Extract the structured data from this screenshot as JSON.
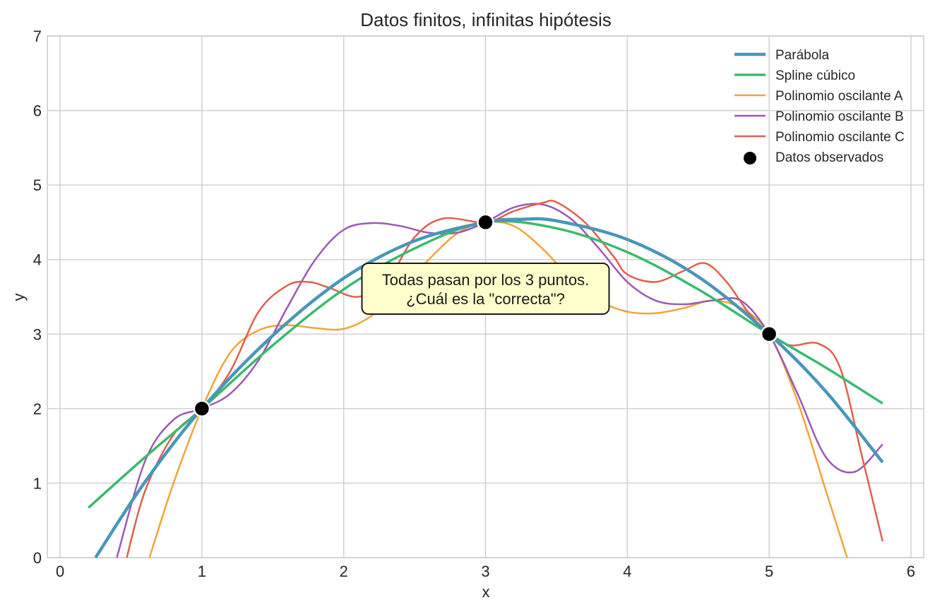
{
  "chart_data": {
    "type": "line",
    "title": "Datos finitos, infinitas hipótesis",
    "xlabel": "x",
    "ylabel": "y",
    "xlim": [
      -0.09,
      6.09
    ],
    "ylim": [
      0,
      7
    ],
    "xticks": [
      "0",
      "1",
      "2",
      "3",
      "4",
      "5",
      "6"
    ],
    "yticks": [
      "0",
      "1",
      "2",
      "3",
      "4",
      "5",
      "6",
      "7"
    ],
    "grid": true,
    "legend_position": "top-right",
    "series": [
      {
        "name": "Parábola",
        "color": "#4a96b8",
        "width": "thick",
        "x": [
          0.25,
          0.6,
          1.0,
          1.5,
          2.0,
          2.5,
          3.0,
          3.25,
          3.5,
          4.0,
          4.5,
          5.0,
          5.4,
          5.8
        ],
        "y": [
          0.0,
          1.02,
          2.0,
          2.98,
          3.75,
          4.25,
          4.5,
          4.54,
          4.52,
          4.27,
          3.77,
          3.0,
          2.23,
          1.28
        ]
      },
      {
        "name": "Spline cúbico",
        "color": "#3cb96e",
        "width": "medium",
        "x": [
          0.2,
          0.6,
          1.0,
          1.5,
          2.0,
          2.5,
          3.0,
          3.5,
          4.0,
          4.5,
          5.0,
          5.4,
          5.8
        ],
        "y": [
          0.67,
          1.35,
          2.0,
          2.85,
          3.6,
          4.15,
          4.5,
          4.42,
          4.1,
          3.6,
          3.0,
          2.55,
          2.07
        ]
      },
      {
        "name": "Polinomio oscilante A",
        "color": "#f0a537",
        "width": "thin",
        "x": [
          0.63,
          0.8,
          1.0,
          1.2,
          1.4,
          1.6,
          1.8,
          2.0,
          2.2,
          2.4,
          2.6,
          2.8,
          3.0,
          3.2,
          3.4,
          3.6,
          3.8,
          4.0,
          4.2,
          4.4,
          4.6,
          4.8,
          5.0,
          5.2,
          5.4,
          5.55
        ],
        "y": [
          0.0,
          1.0,
          2.0,
          2.75,
          3.05,
          3.12,
          3.08,
          3.07,
          3.25,
          3.6,
          4.0,
          4.35,
          4.5,
          4.45,
          4.15,
          3.75,
          3.45,
          3.3,
          3.28,
          3.35,
          3.45,
          3.35,
          3.0,
          2.1,
          0.9,
          0.0
        ]
      },
      {
        "name": "Polinomio oscilante B",
        "color": "#9b59b6",
        "width": "thin",
        "x": [
          0.4,
          0.6,
          0.8,
          1.0,
          1.2,
          1.4,
          1.6,
          1.8,
          2.0,
          2.2,
          2.4,
          2.6,
          2.8,
          3.0,
          3.2,
          3.4,
          3.6,
          3.8,
          4.0,
          4.2,
          4.4,
          4.6,
          4.8,
          5.0,
          5.2,
          5.4,
          5.6,
          5.8
        ],
        "y": [
          0.0,
          1.3,
          1.85,
          2.0,
          2.2,
          2.65,
          3.35,
          4.0,
          4.4,
          4.49,
          4.45,
          4.36,
          4.36,
          4.5,
          4.7,
          4.74,
          4.55,
          4.15,
          3.7,
          3.45,
          3.4,
          3.45,
          3.45,
          3.0,
          2.2,
          1.35,
          1.15,
          1.52
        ]
      },
      {
        "name": "Polinomio oscilante C",
        "color": "#e0604c",
        "width": "thin",
        "x": [
          0.47,
          0.6,
          0.8,
          1.0,
          1.2,
          1.4,
          1.6,
          1.75,
          1.9,
          2.1,
          2.3,
          2.5,
          2.7,
          3.0,
          3.2,
          3.4,
          3.5,
          3.7,
          3.9,
          4.0,
          4.2,
          4.4,
          4.55,
          4.7,
          4.85,
          5.0,
          5.15,
          5.35,
          5.5,
          5.65,
          5.8
        ],
        "y": [
          0.0,
          0.9,
          1.65,
          2.0,
          2.5,
          3.3,
          3.65,
          3.7,
          3.62,
          3.5,
          3.7,
          4.3,
          4.55,
          4.5,
          4.65,
          4.76,
          4.77,
          4.5,
          4.05,
          3.8,
          3.7,
          3.85,
          3.95,
          3.7,
          3.3,
          3.0,
          2.85,
          2.87,
          2.55,
          1.4,
          0.22
        ]
      }
    ],
    "points": {
      "name": "Datos observados",
      "color": "#000000",
      "x": [
        1,
        3,
        5
      ],
      "y": [
        2.0,
        4.5,
        3.0
      ]
    },
    "annotation": {
      "lines": [
        "Todas pasan por los 3 puntos.",
        "¿Cuál es la \"correcta\"?"
      ],
      "x": 3,
      "y": 3.6,
      "bg": "#ffffcc"
    }
  }
}
